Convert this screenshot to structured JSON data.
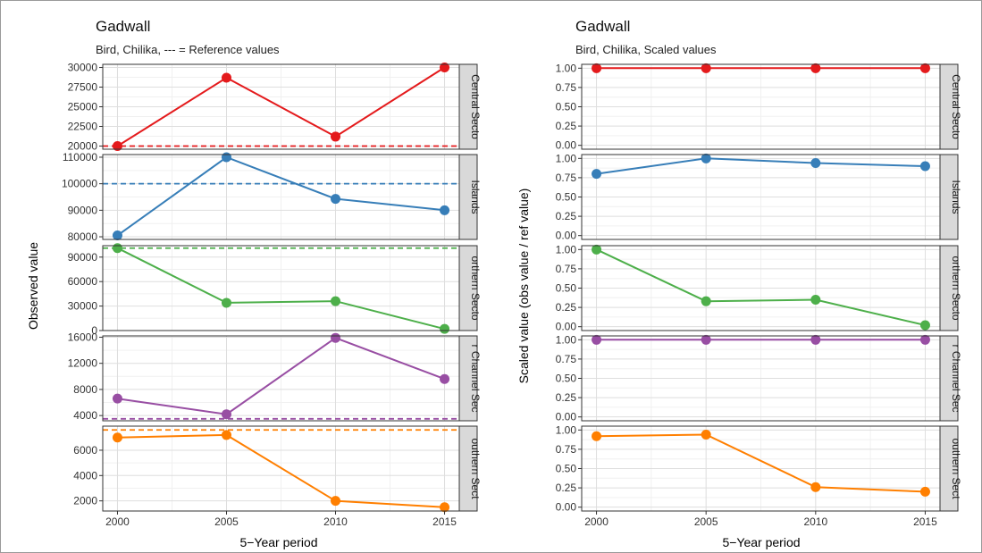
{
  "left": {
    "title": "Gadwall",
    "subtitle": "Bird, Chilika, --- = Reference values",
    "xlabel": "5−Year period",
    "ylabel": "Observed value"
  },
  "right": {
    "title": "Gadwall",
    "subtitle": "Bird, Chilika, Scaled values",
    "xlabel": "5−Year period",
    "ylabel": "Scaled value (obs value / ref value)"
  },
  "chart_data": [
    {
      "type": "line",
      "title": "Gadwall",
      "subtitle": "Bird, Chilika, --- = Reference values",
      "xlabel": "5−Year period",
      "ylabel": "Observed value",
      "x": [
        2000,
        2005,
        2010,
        2015
      ],
      "x_ticks": [
        "2000",
        "2005",
        "2010",
        "2015"
      ],
      "facets": [
        {
          "name": "Central Sector",
          "strip": "Central Secto",
          "color": "#e41a1c",
          "values": [
            20000,
            28700,
            21200,
            30000
          ],
          "reference": 20000,
          "ylim": [
            19600,
            30400
          ],
          "yticks": [
            20000,
            22500,
            25000,
            27500,
            30000
          ],
          "ytick_labels": [
            "20000",
            "22500",
            "25000",
            "27500",
            "30000"
          ]
        },
        {
          "name": "Islands",
          "strip": "Islands",
          "color": "#377eb8",
          "values": [
            80500,
            110000,
            94300,
            90000
          ],
          "reference": 100000,
          "ylim": [
            79000,
            111000
          ],
          "yticks": [
            80000,
            90000,
            100000,
            110000
          ],
          "ytick_labels": [
            "80000",
            "90000",
            "100000",
            "110000"
          ]
        },
        {
          "name": "Northern Sector",
          "strip": "orthern Secto",
          "color": "#4daf4a",
          "values": [
            101000,
            34000,
            36000,
            2000
          ],
          "reference": 101000,
          "ylim": [
            0,
            104000
          ],
          "yticks": [
            0,
            30000,
            60000,
            90000
          ],
          "ytick_labels": [
            "0",
            "30000",
            "60000",
            "90000"
          ]
        },
        {
          "name": "Outer Channel Sector",
          "strip": "r Channel Sec",
          "color": "#984ea3",
          "values": [
            6600,
            4200,
            15900,
            9600
          ],
          "reference": 3500,
          "ylim": [
            3200,
            16200
          ],
          "yticks": [
            4000,
            8000,
            12000,
            16000
          ],
          "ytick_labels": [
            "4000",
            "8000",
            "12000",
            "16000"
          ]
        },
        {
          "name": "Southern Sector",
          "strip": "outhern Sect",
          "color": "#ff7f00",
          "values": [
            7000,
            7200,
            2000,
            1500
          ],
          "reference": 7600,
          "ylim": [
            1200,
            7900
          ],
          "yticks": [
            2000,
            4000,
            6000
          ],
          "ytick_labels": [
            "2000",
            "4000",
            "6000"
          ]
        }
      ]
    },
    {
      "type": "line",
      "title": "Gadwall",
      "subtitle": "Bird, Chilika, Scaled values",
      "xlabel": "5−Year period",
      "ylabel": "Scaled value (obs value / ref value)",
      "x": [
        2000,
        2005,
        2010,
        2015
      ],
      "x_ticks": [
        "2000",
        "2005",
        "2010",
        "2015"
      ],
      "facets": [
        {
          "name": "Central Sector",
          "strip": "Central Secto",
          "color": "#e41a1c",
          "values": [
            1.0,
            1.0,
            1.0,
            1.0
          ],
          "ylim": [
            -0.05,
            1.05
          ],
          "yticks": [
            0,
            0.25,
            0.5,
            0.75,
            1.0
          ],
          "ytick_labels": [
            "0.00",
            "0.25",
            "0.50",
            "0.75",
            "1.00"
          ]
        },
        {
          "name": "Islands",
          "strip": "Islands",
          "color": "#377eb8",
          "values": [
            0.8,
            1.0,
            0.94,
            0.9
          ],
          "ylim": [
            -0.05,
            1.05
          ],
          "yticks": [
            0,
            0.25,
            0.5,
            0.75,
            1.0
          ],
          "ytick_labels": [
            "0.00",
            "0.25",
            "0.50",
            "0.75",
            "1.00"
          ]
        },
        {
          "name": "Northern Sector",
          "strip": "orthern Secto",
          "color": "#4daf4a",
          "values": [
            1.0,
            0.33,
            0.35,
            0.02
          ],
          "ylim": [
            -0.05,
            1.05
          ],
          "yticks": [
            0,
            0.25,
            0.5,
            0.75,
            1.0
          ],
          "ytick_labels": [
            "0.00",
            "0.25",
            "0.50",
            "0.75",
            "1.00"
          ]
        },
        {
          "name": "Outer Channel Sector",
          "strip": "r Channel Sec",
          "color": "#984ea3",
          "values": [
            1.0,
            1.0,
            1.0,
            1.0
          ],
          "ylim": [
            -0.05,
            1.05
          ],
          "yticks": [
            0,
            0.25,
            0.5,
            0.75,
            1.0
          ],
          "ytick_labels": [
            "0.00",
            "0.25",
            "0.50",
            "0.75",
            "1.00"
          ]
        },
        {
          "name": "Southern Sector",
          "strip": "outhern Sect",
          "color": "#ff7f00",
          "values": [
            0.92,
            0.94,
            0.26,
            0.2
          ],
          "ylim": [
            -0.05,
            1.05
          ],
          "yticks": [
            0,
            0.25,
            0.5,
            0.75,
            1.0
          ],
          "ytick_labels": [
            "0.00",
            "0.25",
            "0.50",
            "0.75",
            "1.00"
          ]
        }
      ]
    }
  ]
}
